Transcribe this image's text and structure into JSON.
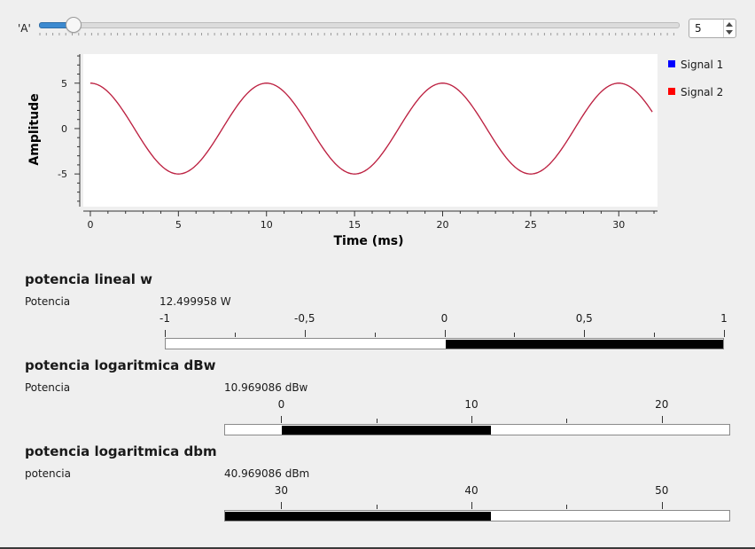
{
  "slider": {
    "label": "'A'",
    "value": 5
  },
  "spinbox": {
    "value": "5"
  },
  "chart_data": {
    "type": "line",
    "xlabel": "Time (ms)",
    "ylabel": "Amplitude",
    "xlim": [
      -0.4,
      32.2
    ],
    "ylim": [
      -8.6,
      8.2
    ],
    "x_ticks": [
      0,
      5,
      10,
      15,
      20,
      25,
      30
    ],
    "y_ticks": [
      5,
      0,
      -5
    ],
    "legend_placement": "right",
    "series": [
      {
        "name": "Signal 1",
        "color": "#0000ff",
        "function": "5*cos(2*pi*t/10)",
        "x_range": [
          0,
          32
        ]
      },
      {
        "name": "Signal 2",
        "color": "#ff0000",
        "function": "5*cos(2*pi*t/10)",
        "x_range": [
          0,
          32
        ]
      }
    ],
    "line_color": "#b5264a"
  },
  "sections": [
    {
      "title": "potencia lineal w",
      "label": "Potencia",
      "value_text": "12.499958 W",
      "value": 12.499958,
      "scale": {
        "min": -1,
        "max": 1,
        "labels": [
          "-1",
          "-0,5",
          "0",
          "0,5",
          "1"
        ],
        "label_values": [
          -1,
          -0.5,
          0,
          0.5,
          1
        ],
        "minor": [
          -0.75,
          -0.25,
          0.25,
          0.75
        ]
      }
    },
    {
      "title": "potencia logaritmica dBw",
      "label": "Potencia",
      "value_text": "10.969086 dBw",
      "value": 10.969086,
      "scale": {
        "min": -3,
        "max": 23.6,
        "labels": [
          "0",
          "10",
          "20"
        ],
        "label_values": [
          0,
          10,
          20
        ],
        "minor": [
          5,
          15
        ]
      }
    },
    {
      "title": "potencia logaritmica dbm",
      "label": "potencia",
      "value_text": "40.969086 dBm",
      "value": 40.969086,
      "scale": {
        "min": 27,
        "max": 53.6,
        "labels": [
          "30",
          "40",
          "50"
        ],
        "label_values": [
          30,
          40,
          50
        ],
        "minor": [
          35,
          45
        ]
      }
    }
  ]
}
